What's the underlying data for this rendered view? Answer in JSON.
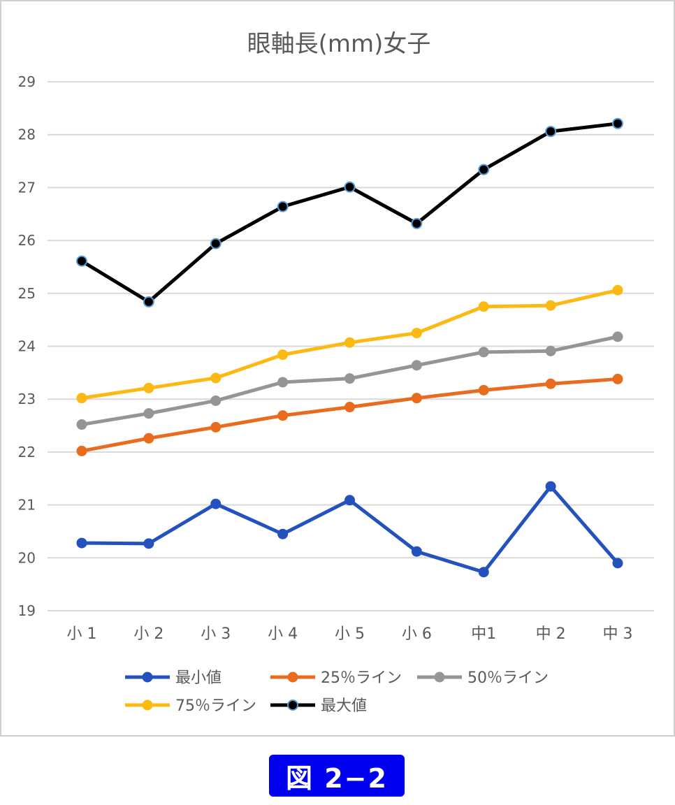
{
  "caption": "図 2−2",
  "chart_data": {
    "type": "line",
    "title": "眼軸長(mm)女子",
    "xlabel": "",
    "ylabel": "",
    "categories": [
      "小 1",
      "小 2",
      "小 3",
      "小 4",
      "小 5",
      "小 6",
      "中1",
      "中 2",
      "中 3"
    ],
    "ylim": [
      19,
      29
    ],
    "yticks": [
      "19",
      "20",
      "21",
      "22",
      "23",
      "24",
      "25",
      "26",
      "27",
      "28",
      "29"
    ],
    "grid": true,
    "legend_position": "bottom",
    "series": [
      {
        "name": "最小値",
        "color": "#2352bf",
        "marker_fill": "#2352bf",
        "values": [
          20.28,
          20.27,
          21.02,
          20.45,
          21.09,
          20.12,
          19.73,
          21.35,
          19.9
        ]
      },
      {
        "name": "25％ライン",
        "color": "#e96b1e",
        "marker_fill": "#e96b1e",
        "values": [
          22.02,
          22.26,
          22.47,
          22.69,
          22.85,
          23.02,
          23.17,
          23.29,
          23.38
        ]
      },
      {
        "name": "50％ライン",
        "color": "#959595",
        "marker_fill": "#959595",
        "values": [
          22.52,
          22.73,
          22.97,
          23.32,
          23.39,
          23.64,
          23.89,
          23.91,
          24.18
        ]
      },
      {
        "name": "75％ライン",
        "color": "#fdb913",
        "marker_fill": "#fdb913",
        "values": [
          23.02,
          23.21,
          23.4,
          23.84,
          24.07,
          24.25,
          24.75,
          24.77,
          25.06
        ]
      },
      {
        "name": "最大値",
        "color": "#000000",
        "marker_fill": "#000000",
        "marker_stroke": "#5b9bd5",
        "values": [
          25.61,
          24.84,
          25.94,
          26.64,
          27.01,
          26.32,
          27.34,
          28.06,
          28.21
        ]
      }
    ]
  }
}
